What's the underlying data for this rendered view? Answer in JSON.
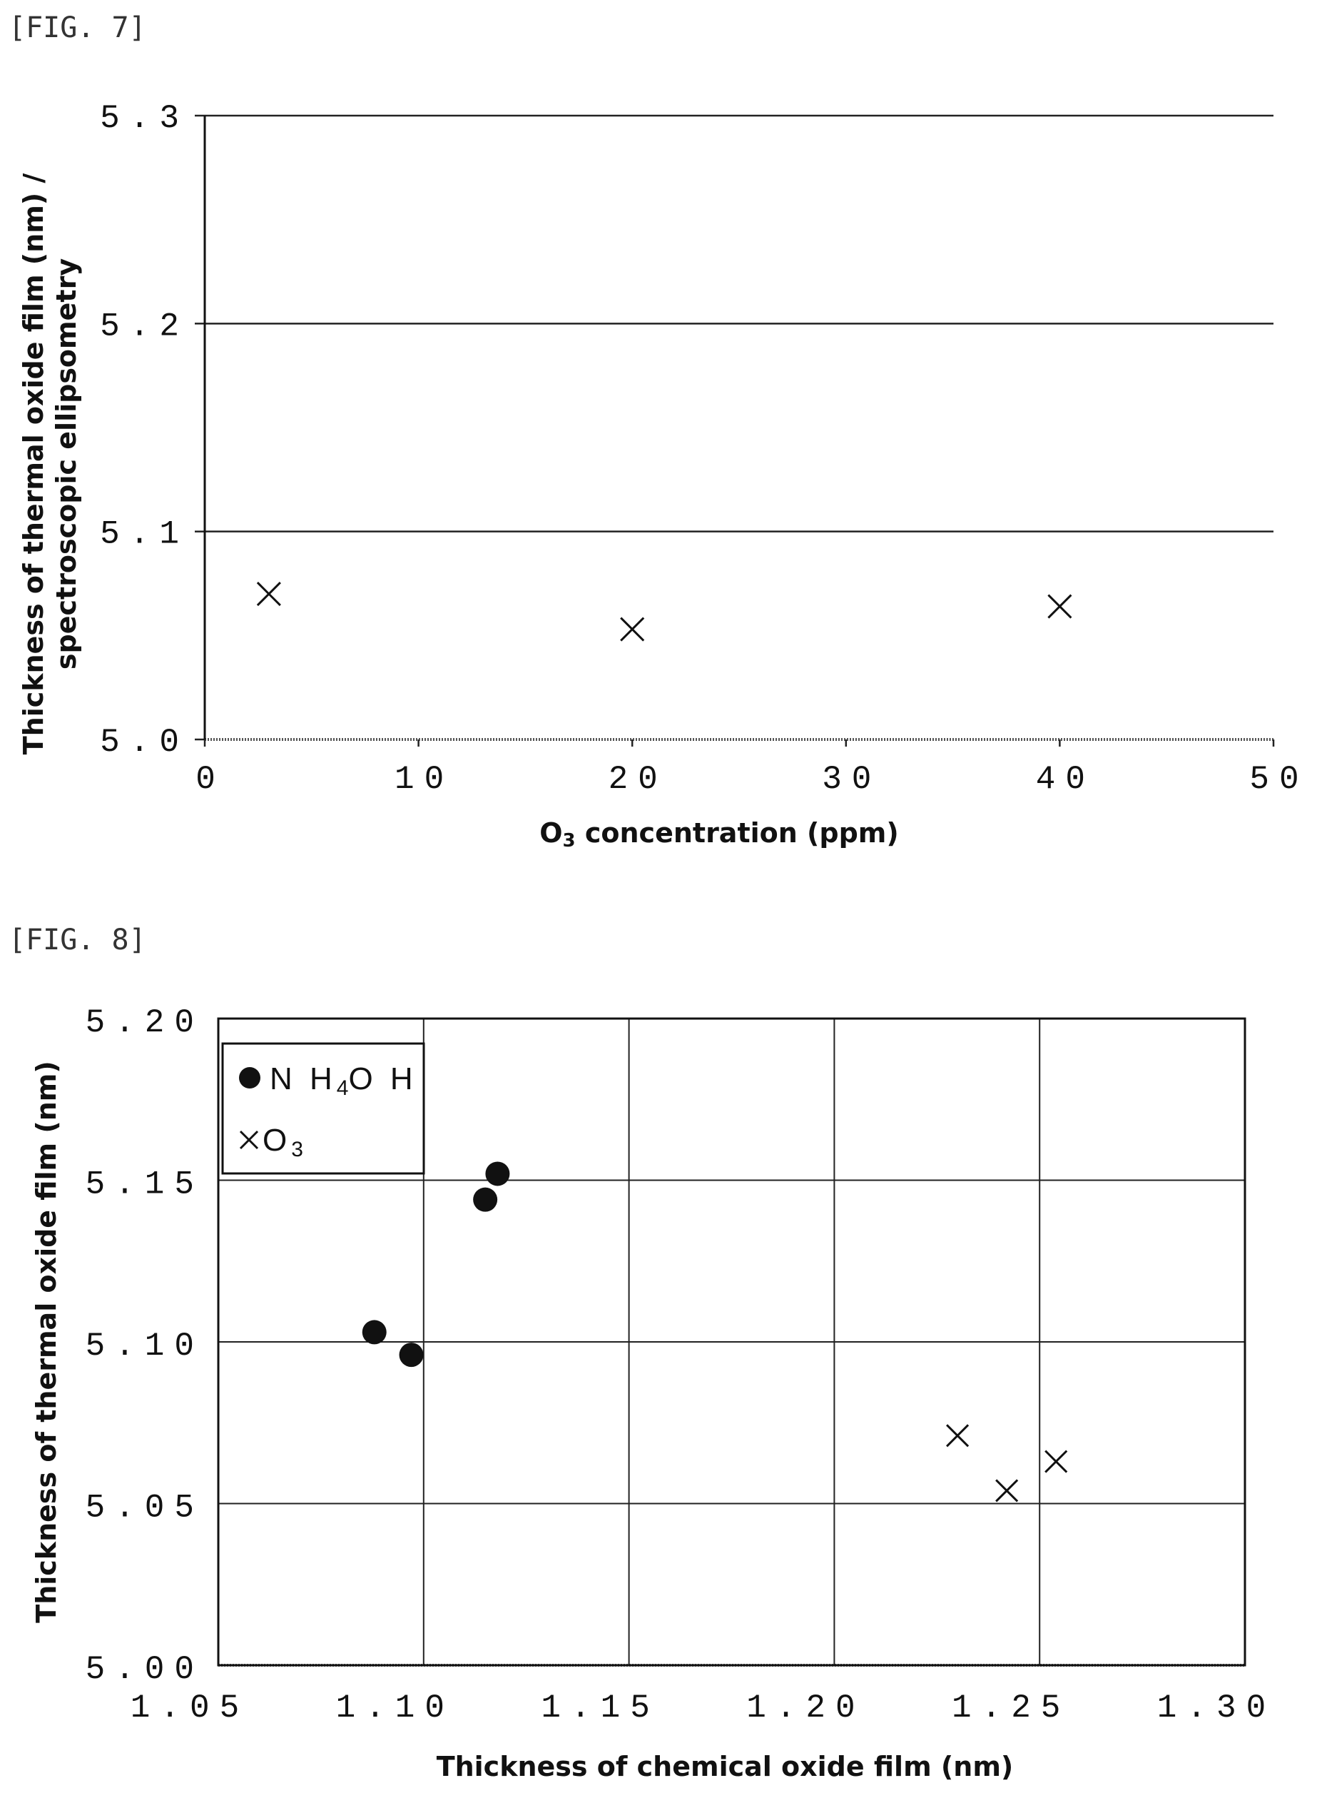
{
  "chart_data": [
    {
      "type": "scatter",
      "figure_label": "[FIG. 7]",
      "title": "",
      "xlabel": "O3 concentration (ppm)",
      "xlabel_parts": {
        "pre": "O",
        "sub": "3",
        "post": " concentration (ppm)"
      },
      "ylabel_lines": [
        "Thickness of thermal oxide film (nm) /",
        "spectroscopic ellipsometry"
      ],
      "xlim": [
        0,
        50
      ],
      "ylim": [
        5.0,
        5.3
      ],
      "x_ticks": [
        "0",
        "10",
        "20",
        "30",
        "40",
        "50"
      ],
      "x_tick_values": [
        0,
        10,
        20,
        30,
        40,
        50
      ],
      "y_ticks": [
        "5.0",
        "5.1",
        "5.2",
        "5.3"
      ],
      "y_tick_values": [
        5.0,
        5.1,
        5.2,
        5.3
      ],
      "grid": "horizontal",
      "marker": "x",
      "points": [
        {
          "x": 3,
          "y": 5.07
        },
        {
          "x": 20,
          "y": 5.053
        },
        {
          "x": 40,
          "y": 5.064
        }
      ]
    },
    {
      "type": "scatter",
      "figure_label": "[FIG. 8]",
      "title": "",
      "xlabel": "Thickness of chemical oxide film (nm)",
      "ylabel": "Thickness of thermal oxide film (nm)",
      "xlim": [
        1.05,
        1.3
      ],
      "ylim": [
        5.0,
        5.2
      ],
      "x_ticks": [
        "1.05",
        "1.10",
        "1.15",
        "1.20",
        "1.25",
        "1.30"
      ],
      "x_tick_values": [
        1.05,
        1.1,
        1.15,
        1.2,
        1.25,
        1.3
      ],
      "y_ticks": [
        "5.00",
        "5.05",
        "5.10",
        "5.15",
        "5.20"
      ],
      "y_tick_values": [
        5.0,
        5.05,
        5.1,
        5.15,
        5.2
      ],
      "grid": "both",
      "legend_position": "top-left",
      "series": [
        {
          "name": "NH4OH",
          "name_parts": {
            "pre": "N H",
            "sub": "4",
            "post": "O H"
          },
          "marker": "circle",
          "points": [
            {
              "x": 1.088,
              "y": 5.103
            },
            {
              "x": 1.097,
              "y": 5.096
            },
            {
              "x": 1.115,
              "y": 5.144
            },
            {
              "x": 1.118,
              "y": 5.152
            }
          ]
        },
        {
          "name": "O3",
          "name_parts": {
            "pre": "O",
            "sub": "3",
            "post": ""
          },
          "marker": "x",
          "points": [
            {
              "x": 1.23,
              "y": 5.071
            },
            {
              "x": 1.242,
              "y": 5.054
            },
            {
              "x": 1.254,
              "y": 5.063
            }
          ]
        }
      ]
    }
  ]
}
